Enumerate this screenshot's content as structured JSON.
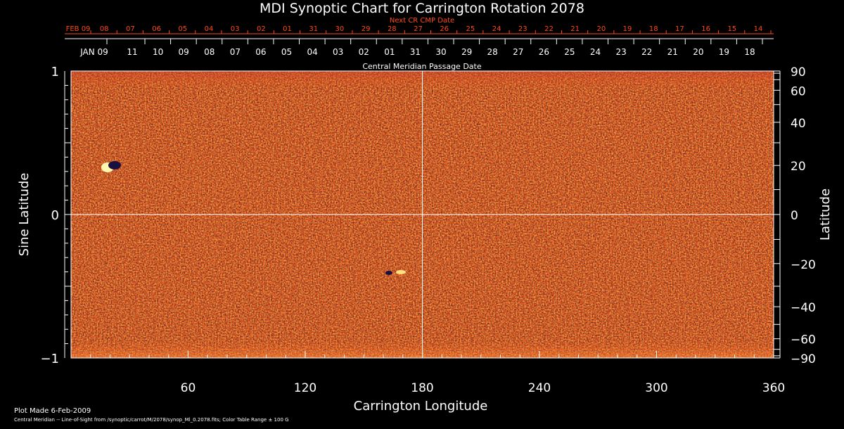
{
  "chart_data": {
    "type": "heatmap",
    "title": "MDI Synoptic Chart for Carrington Rotation 2078",
    "xlabel": "Carrington Longitude",
    "ylabel_left": "Sine Latitude",
    "ylabel_right": "Latitude",
    "xlim": [
      0,
      360
    ],
    "ylim": [
      -1,
      1
    ],
    "x_ticks": [
      60,
      120,
      180,
      240,
      300,
      360
    ],
    "y_left_ticks": [
      {
        "value": 1,
        "label": "1"
      },
      {
        "value": 0,
        "label": "0"
      },
      {
        "value": -1,
        "label": "−1"
      }
    ],
    "y_right_ticks": [
      {
        "lat": 90,
        "label": "90"
      },
      {
        "lat": 60,
        "label": "60"
      },
      {
        "lat": 40,
        "label": "40"
      },
      {
        "lat": 20,
        "label": "20"
      },
      {
        "lat": 0,
        "label": "0"
      },
      {
        "lat": -20,
        "label": "−20"
      },
      {
        "lat": -40,
        "label": "−40"
      },
      {
        "lat": -60,
        "label": "−60"
      },
      {
        "lat": -90,
        "label": "−90"
      }
    ],
    "next_cr_axis": {
      "label": "Next CR CMP Date",
      "labels": [
        "FEB 09",
        "08",
        "07",
        "06",
        "05",
        "04",
        "03",
        "02",
        "01",
        "31",
        "30",
        "29",
        "28",
        "27",
        "26",
        "25",
        "24",
        "23",
        "22",
        "21",
        "20",
        "19",
        "18",
        "17",
        "16",
        "15",
        "14"
      ],
      "color": "#ff4a1a"
    },
    "cmp_axis": {
      "label": "Central Meridian Passage Date",
      "labels": [
        "JAN 09",
        "11",
        "10",
        "09",
        "08",
        "07",
        "06",
        "05",
        "04",
        "03",
        "02",
        "01",
        "31",
        "30",
        "29",
        "28",
        "27",
        "26",
        "25",
        "24",
        "23",
        "22",
        "21",
        "20",
        "19",
        "18"
      ]
    },
    "grid": {
      "vertical_at_x": 180,
      "horizontal_at_y": 0
    },
    "color_table_range_gauss": 100,
    "colors": {
      "background": "#000000",
      "map_base": "#ee5a1c",
      "negative": "#1a1040",
      "positive": "#fff2a0",
      "text": "#ffffff"
    }
  },
  "footer": {
    "plot_made": "Plot Made   6-Feb-2009",
    "note": "Central Meridian -- Line-of-Sight from /synoptic/carrot/M/2078/synop_Ml_0.2078.fits; Color Table Range ± 100 G"
  }
}
